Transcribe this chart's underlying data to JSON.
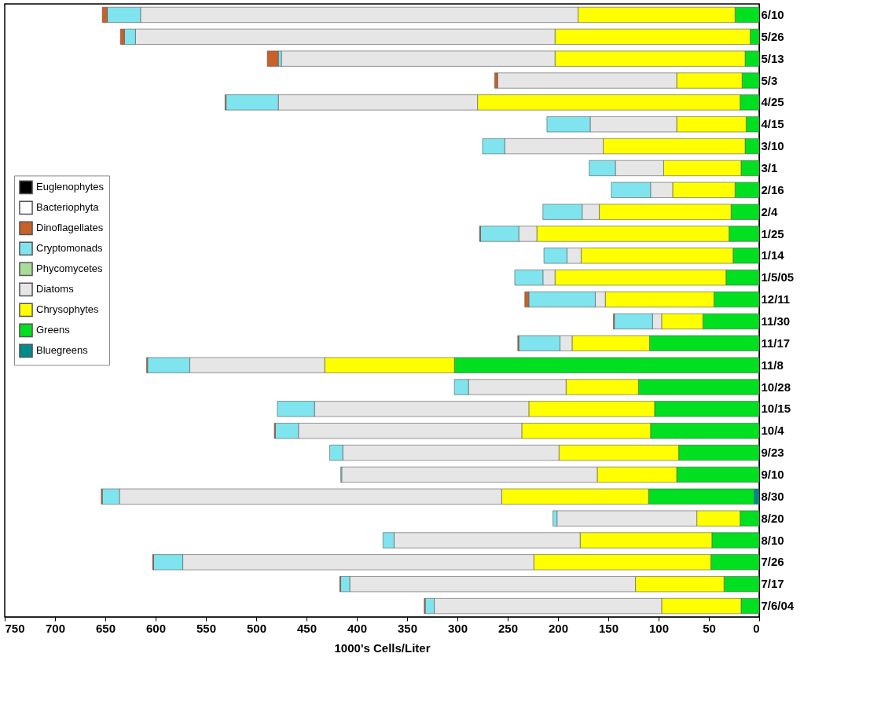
{
  "chart_data": {
    "type": "bar",
    "orientation": "horizontal",
    "stacked": true,
    "xlabel": "1000's Cells/Liter",
    "categories": [
      "6/10",
      "5/26",
      "5/13",
      "5/3",
      "4/25",
      "4/15",
      "3/10",
      "3/1",
      "2/16",
      "2/4",
      "1/25",
      "1/14",
      "1/5/05",
      "12/11",
      "11/30",
      "11/17",
      "11/8",
      "10/28",
      "10/15",
      "10/4",
      "9/23",
      "9/10",
      "8/30",
      "8/20",
      "8/10",
      "7/26",
      "7/17",
      "7/6/04"
    ],
    "xlim": [
      750,
      0
    ],
    "xticks": [
      750,
      700,
      650,
      600,
      550,
      500,
      450,
      400,
      350,
      300,
      250,
      200,
      150,
      100,
      50,
      0
    ],
    "legend": "left",
    "grid": false,
    "series": [
      {
        "name": "Bluegreens",
        "color": "#008b8b",
        "values": [
          null,
          null,
          null,
          null,
          null,
          null,
          null,
          null,
          null,
          null,
          null,
          null,
          null,
          null,
          null,
          null,
          null,
          null,
          null,
          null,
          null,
          null,
          5,
          null,
          null,
          null,
          null,
          null
        ]
      },
      {
        "name": "Greens",
        "color": "#00e020",
        "values": [
          24,
          9,
          14,
          17,
          19,
          13,
          14,
          18,
          24,
          28,
          30,
          26,
          33,
          45,
          56,
          109,
          303,
          120,
          104,
          108,
          80,
          82,
          105,
          19,
          47,
          48,
          35,
          18
        ]
      },
      {
        "name": "Chrysophytes",
        "color": "#ffff00",
        "values": [
          156,
          194,
          189,
          65,
          261,
          69,
          141,
          77,
          62,
          131,
          191,
          151,
          170,
          108,
          41,
          77,
          129,
          72,
          125,
          128,
          119,
          79,
          146,
          43,
          131,
          176,
          88,
          79
        ]
      },
      {
        "name": "Diatoms",
        "color": "#e6e6e6",
        "values": [
          435,
          417,
          272,
          178,
          198,
          86,
          98,
          48,
          22,
          17,
          18,
          14,
          12,
          10,
          9,
          12,
          134,
          97,
          213,
          222,
          215,
          254,
          380,
          139,
          185,
          349,
          284,
          226
        ]
      },
      {
        "name": "Phycomycetes",
        "color": "#a8dc98",
        "values": [
          null,
          null,
          null,
          null,
          null,
          null,
          null,
          null,
          null,
          null,
          null,
          null,
          null,
          null,
          null,
          null,
          null,
          null,
          null,
          null,
          null,
          null,
          null,
          null,
          null,
          null,
          null,
          null
        ]
      },
      {
        "name": "Cryptomonads",
        "color": "#80e4ee",
        "values": [
          33,
          11,
          3,
          null,
          52,
          43,
          22,
          26,
          39,
          39,
          38,
          23,
          28,
          66,
          38,
          41,
          42,
          14,
          37,
          23,
          13,
          1,
          17,
          4,
          11,
          29,
          9,
          9
        ]
      },
      {
        "name": "Dinoflagellates",
        "color": "#c8602a",
        "values": [
          5,
          4,
          11,
          3,
          1,
          null,
          null,
          null,
          null,
          null,
          1,
          null,
          null,
          4,
          1,
          1,
          1,
          null,
          null,
          1,
          null,
          null,
          1,
          null,
          null,
          1,
          1,
          1
        ]
      },
      {
        "name": "Bacteriophyta",
        "color": "#ffffff",
        "values": [
          null,
          null,
          null,
          null,
          null,
          null,
          null,
          null,
          null,
          null,
          null,
          null,
          null,
          null,
          null,
          null,
          null,
          null,
          null,
          null,
          null,
          null,
          null,
          null,
          null,
          null,
          null,
          null
        ]
      },
      {
        "name": "Euglenophytes",
        "color": "#000000",
        "values": [
          null,
          null,
          null,
          null,
          null,
          null,
          null,
          null,
          null,
          null,
          null,
          null,
          null,
          null,
          null,
          null,
          null,
          null,
          null,
          null,
          null,
          null,
          null,
          null,
          null,
          null,
          null,
          null
        ]
      }
    ]
  }
}
